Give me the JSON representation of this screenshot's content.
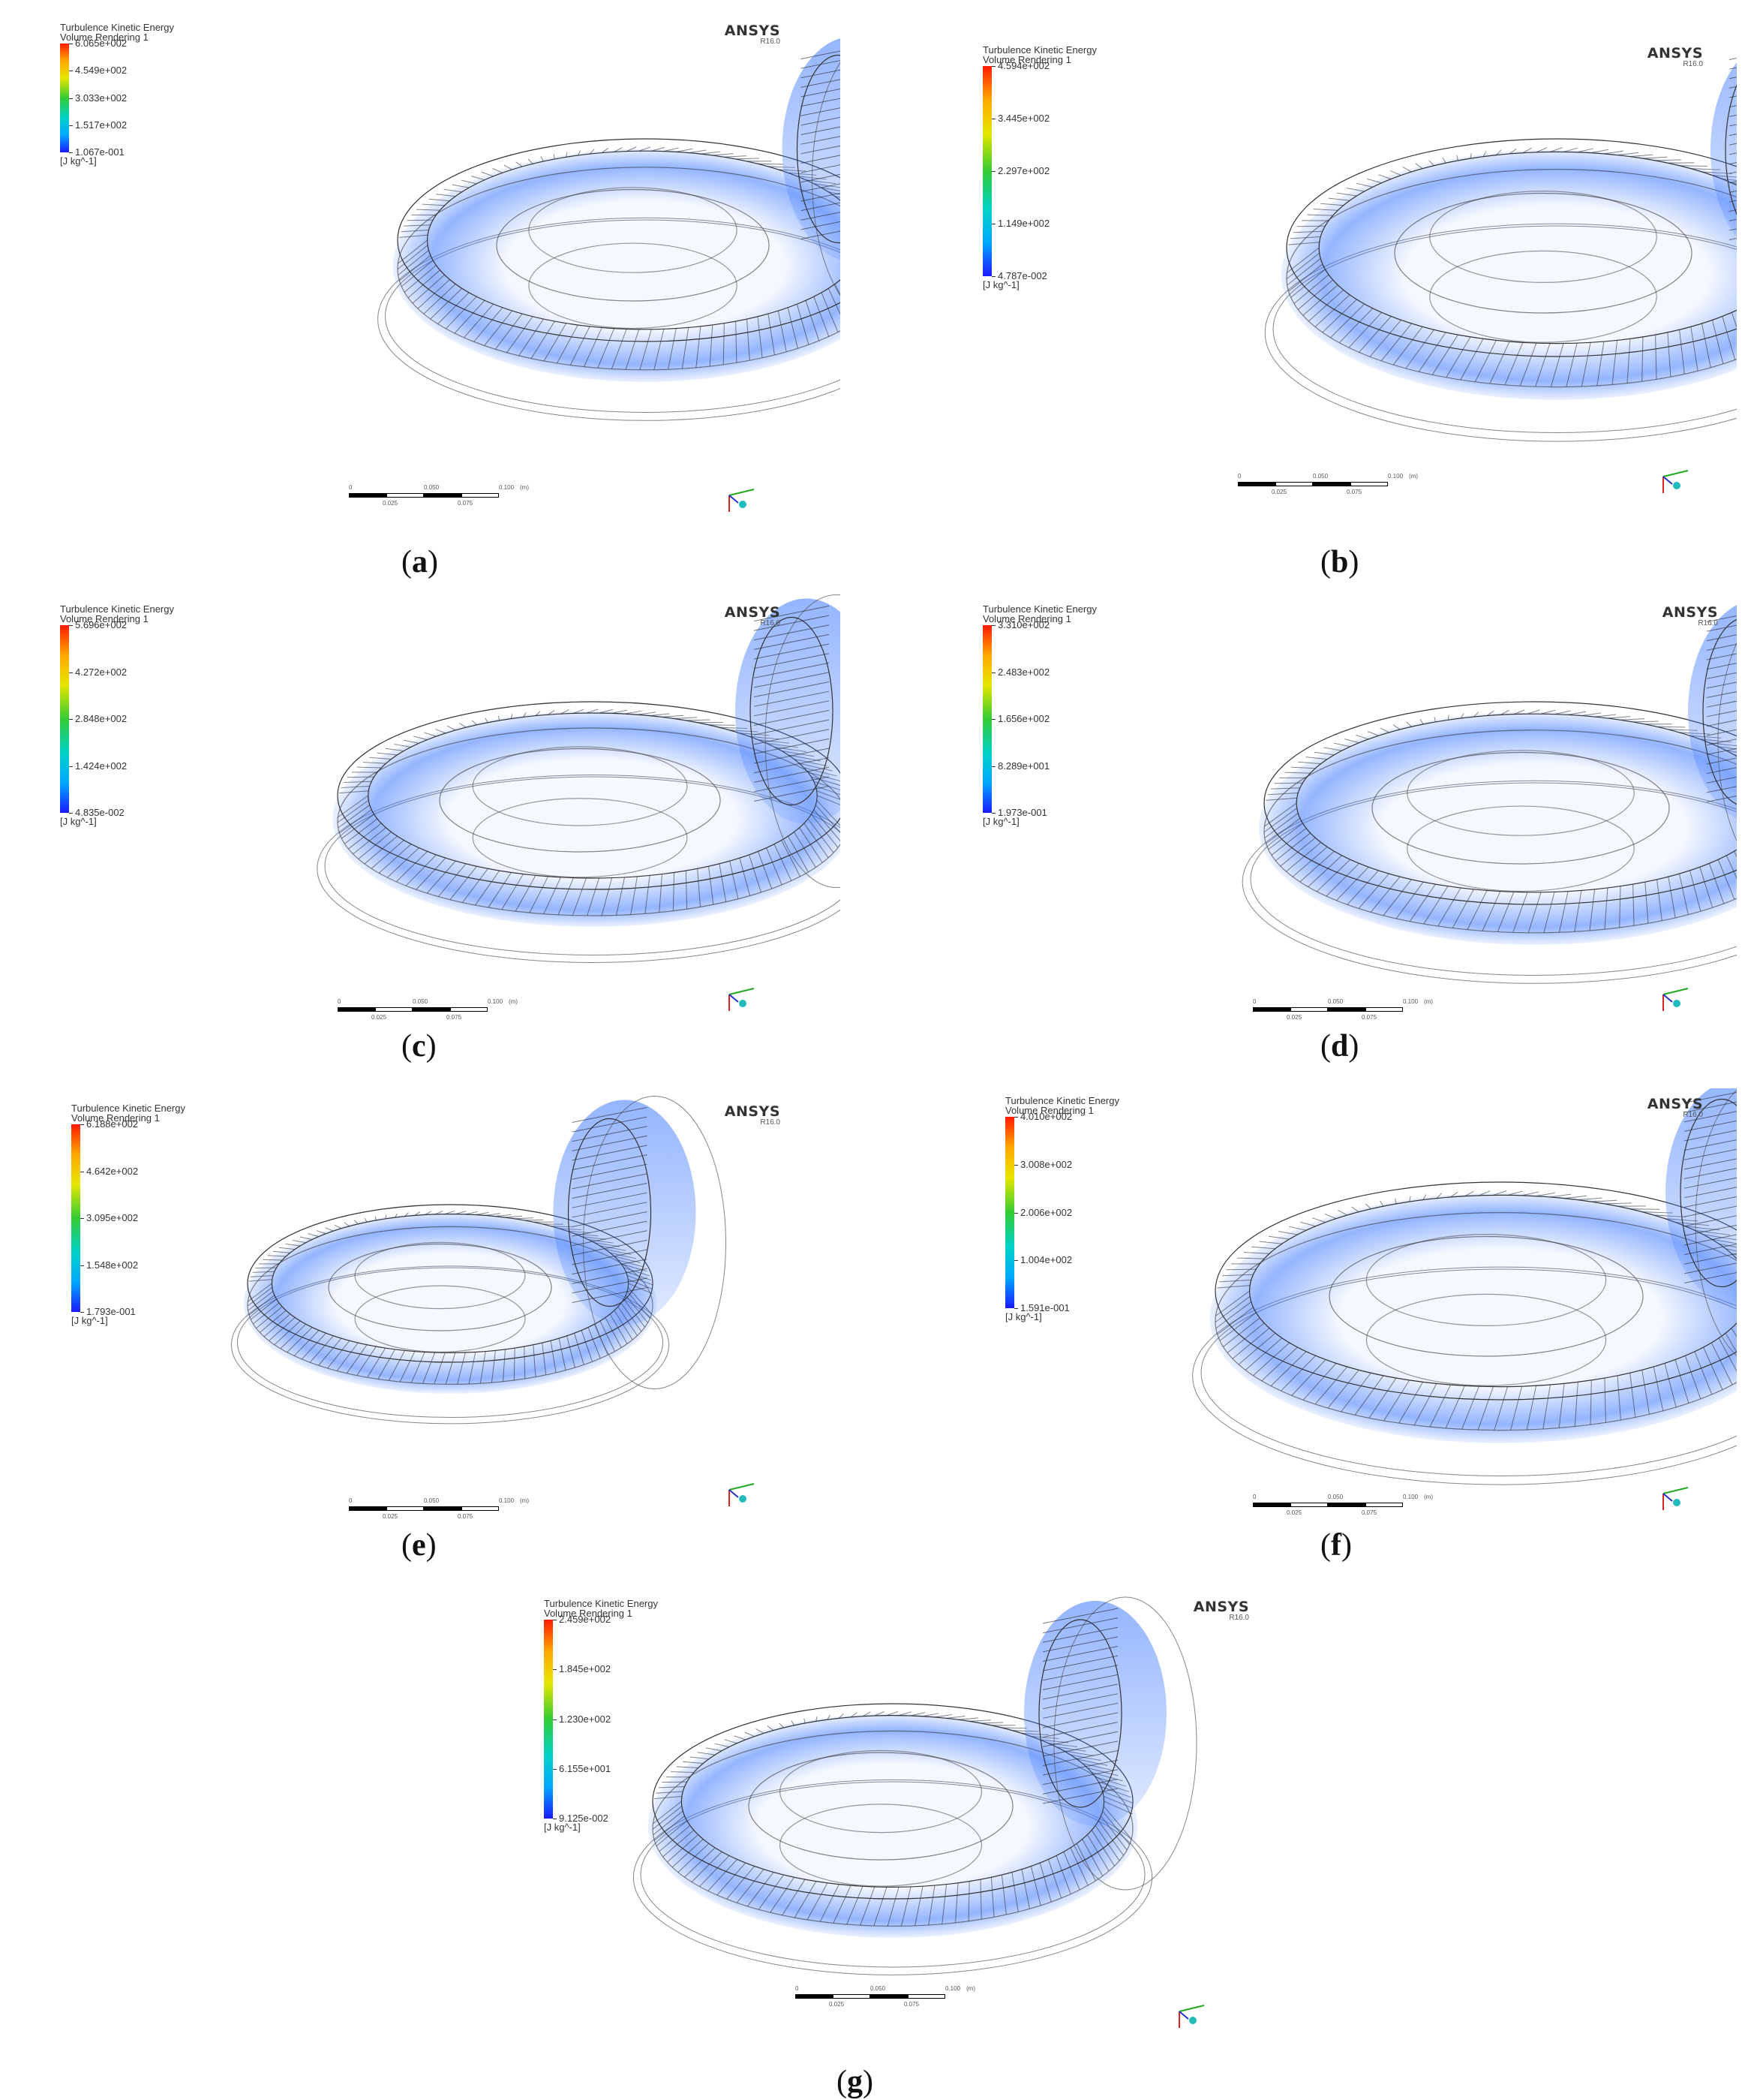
{
  "panels": [
    {
      "id": "a",
      "title": "Turbulence Kinetic Energy",
      "subtitle": "Volume Rendering 1",
      "ticks": [
        "6.065e+002",
        "4.549e+002",
        "3.033e+002",
        "1.517e+002",
        "1.067e-001"
      ],
      "unit": "[J kg^-1]",
      "brand": "ANSYS",
      "version": "R16.0",
      "scale_top": [
        "0",
        "0.050",
        "0.100",
        "(m)"
      ],
      "scale_bottom": [
        "0.025",
        "0.075"
      ],
      "caption": "a"
    },
    {
      "id": "b",
      "title": "Turbulence Kinetic Energy",
      "subtitle": "Volume Rendering 1",
      "ticks": [
        "4.594e+002",
        "3.445e+002",
        "2.297e+002",
        "1.149e+002",
        "4.787e-002"
      ],
      "unit": "[J kg^-1]",
      "brand": "ANSYS",
      "version": "R16.0",
      "scale_top": [
        "0",
        "0.050",
        "0.100",
        "(m)"
      ],
      "scale_bottom": [
        "0.025",
        "0.075"
      ],
      "caption": "b"
    },
    {
      "id": "c",
      "title": "Turbulence Kinetic Energy",
      "subtitle": "Volume Rendering 1",
      "ticks": [
        "5.696e+002",
        "4.272e+002",
        "2.848e+002",
        "1.424e+002",
        "4.835e-002"
      ],
      "unit": "[J kg^-1]",
      "brand": "ANSYS",
      "version": "R16.0",
      "scale_top": [
        "0",
        "0.050",
        "0.100",
        "(m)"
      ],
      "scale_bottom": [
        "0.025",
        "0.075"
      ],
      "caption": "c"
    },
    {
      "id": "d",
      "title": "Turbulence Kinetic Energy",
      "subtitle": "Volume Rendering 1",
      "ticks": [
        "3.310e+002",
        "2.483e+002",
        "1.656e+002",
        "8.289e+001",
        "1.973e-001"
      ],
      "unit": "[J kg^-1]",
      "brand": "ANSYS",
      "version": "R16.0",
      "scale_top": [
        "0",
        "0.050",
        "0.100",
        "(m)"
      ],
      "scale_bottom": [
        "0.025",
        "0.075"
      ],
      "caption": "d"
    },
    {
      "id": "e",
      "title": "Turbulence Kinetic Energy",
      "subtitle": "Volume Rendering 1",
      "ticks": [
        "6.188e+002",
        "4.642e+002",
        "3.095e+002",
        "1.548e+002",
        "1.793e-001"
      ],
      "unit": "[J kg^-1]",
      "brand": "ANSYS",
      "version": "R16.0",
      "scale_top": [
        "0",
        "0.050",
        "0.100",
        "(m)"
      ],
      "scale_bottom": [
        "0.025",
        "0.075"
      ],
      "caption": "e"
    },
    {
      "id": "f",
      "title": "Turbulence Kinetic Energy",
      "subtitle": "Volume Rendering 1",
      "ticks": [
        "4.010e+002",
        "3.008e+002",
        "2.006e+002",
        "1.004e+002",
        "1.591e-001"
      ],
      "unit": "[J kg^-1]",
      "brand": "ANSYS",
      "version": "R16.0",
      "scale_top": [
        "0",
        "0.050",
        "0.100",
        "(m)"
      ],
      "scale_bottom": [
        "0.025",
        "0.075"
      ],
      "caption": "f"
    },
    {
      "id": "g",
      "title": "Turbulence Kinetic Energy",
      "subtitle": "Volume Rendering 1",
      "ticks": [
        "2.459e+002",
        "1.845e+002",
        "1.230e+002",
        "6.155e+001",
        "9.125e-002"
      ],
      "unit": "[J kg^-1]",
      "brand": "ANSYS",
      "version": "R16.0",
      "scale_top": [
        "0",
        "0.050",
        "0.100",
        "(m)"
      ],
      "scale_bottom": [
        "0.025",
        "0.075"
      ],
      "caption": "g"
    }
  ],
  "colors": {
    "colormap_top": "#ff1a00",
    "colormap_bottom": "#1a1aff",
    "fluid": "#3c78ff",
    "mesh": "#222222"
  }
}
